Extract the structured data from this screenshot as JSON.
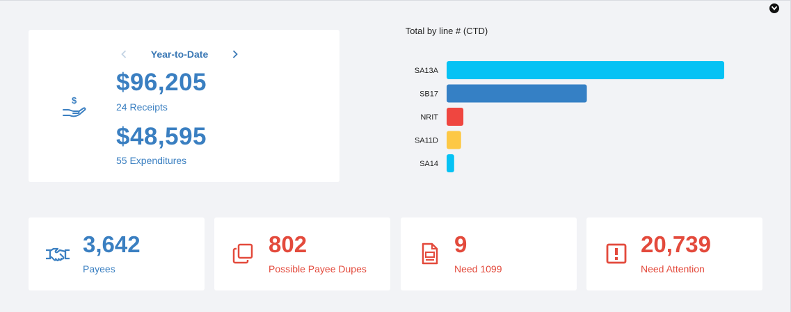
{
  "ytd": {
    "period_label": "Year-to-Date",
    "receipts_amount": "$96,205",
    "receipts_label": "24 Receipts",
    "expenditures_amount": "$48,595",
    "expenditures_label": "55 Expenditures",
    "icon": "hand-dollar-icon"
  },
  "chart_data": {
    "type": "bar",
    "orientation": "horizontal",
    "title": "Total by line # (CTD)",
    "categories": [
      "SA13A",
      "SB17",
      "NRIT",
      "SA11D",
      "SA14"
    ],
    "values": [
      96205,
      48595,
      5800,
      5000,
      2600
    ],
    "colors": [
      "#06c2f4",
      "#3580c5",
      "#ef4640",
      "#fdc845",
      "#06c2f4"
    ],
    "grid": false,
    "legend": "none"
  },
  "stats": [
    {
      "value": "3,642",
      "label": "Payees",
      "icon": "handshake-icon",
      "color": "#3a7fc1"
    },
    {
      "value": "802",
      "label": "Possible Payee Dupes",
      "icon": "copy-icon",
      "color": "#e34a3c"
    },
    {
      "value": "9",
      "label": "Need 1099",
      "icon": "document-icon",
      "color": "#e34a3c"
    },
    {
      "value": "20,739",
      "label": "Need Attention",
      "icon": "alert-box-icon",
      "color": "#e34a3c"
    }
  ]
}
